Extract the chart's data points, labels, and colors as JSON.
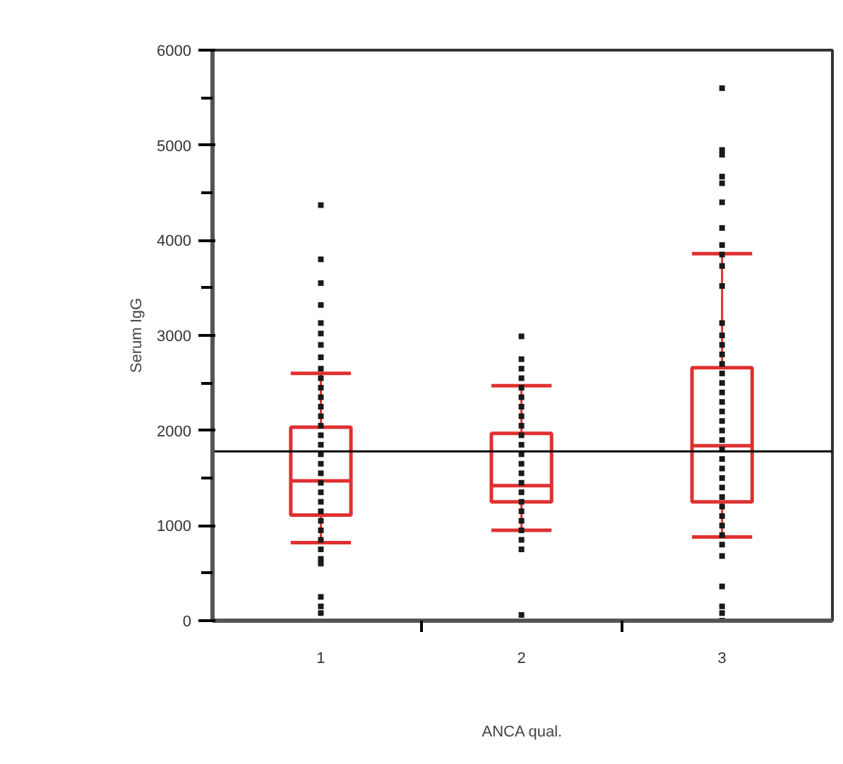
{
  "chart_data": {
    "type": "box",
    "xlabel": "ANCA qual.",
    "ylabel": "Serum IgG",
    "categories": [
      "1",
      "2",
      "3"
    ],
    "ylim": [
      0,
      6000
    ],
    "yticks": [
      0,
      {
        "value": 500,
        "label": null
      },
      1000,
      {
        "value": 1500,
        "label": null
      },
      2000,
      {
        "value": 2500,
        "label": null
      },
      3000,
      {
        "value": 3500,
        "label": null
      },
      4000,
      {
        "value": 4500,
        "label": null
      },
      5000,
      {
        "value": 5500,
        "label": null
      },
      6000
    ],
    "grid": false,
    "ref_lines": [
      {
        "axis": "y",
        "value": 1780,
        "color": "#000000"
      }
    ],
    "series": [
      {
        "type": "box",
        "color": "#e03030",
        "boxes": [
          {
            "low": 820,
            "q1": 1110,
            "median": 1470,
            "q3": 2035,
            "high": 2600
          },
          {
            "low": 950,
            "q1": 1250,
            "median": 1420,
            "q3": 1970,
            "high": 2470
          },
          {
            "low": 880,
            "q1": 1250,
            "median": 1840,
            "q3": 2660,
            "high": 3860
          }
        ]
      },
      {
        "type": "scatter",
        "color": "#1a1a1a",
        "marker": "square",
        "x": [
          "1",
          "1",
          "1",
          "1",
          "1",
          "1",
          "1",
          "1",
          "1",
          "1",
          "1",
          "1",
          "1",
          "1",
          "1",
          "1",
          "1",
          "1",
          "1",
          "1",
          "1",
          "1",
          "1",
          "1",
          "1",
          "1",
          "1",
          "1",
          "1",
          "1",
          "1",
          "1",
          "1",
          "2",
          "2",
          "2",
          "2",
          "2",
          "2",
          "2",
          "2",
          "2",
          "2",
          "2",
          "2",
          "2",
          "2",
          "2",
          "2",
          "2",
          "2",
          "2",
          "2",
          "2",
          "2",
          "2",
          "3",
          "3",
          "3",
          "3",
          "3",
          "3",
          "3",
          "3",
          "3",
          "3",
          "3",
          "3",
          "3",
          "3",
          "3",
          "3",
          "3",
          "3",
          "3",
          "3",
          "3",
          "3",
          "3",
          "3",
          "3",
          "3",
          "3",
          "3",
          "3",
          "3",
          "3",
          "3",
          "3",
          "3",
          "3",
          "3",
          "3",
          "3",
          "3",
          "3"
        ],
        "values": [
          4370,
          3800,
          3550,
          3320,
          3130,
          3020,
          2900,
          2770,
          2650,
          2550,
          2450,
          2350,
          2250,
          2150,
          2050,
          1950,
          1850,
          1750,
          1650,
          1550,
          1450,
          1350,
          1250,
          1150,
          1050,
          950,
          850,
          750,
          650,
          600,
          250,
          150,
          80,
          2990,
          2750,
          2650,
          2550,
          2450,
          2350,
          2250,
          2150,
          2050,
          1950,
          1850,
          1750,
          1650,
          1550,
          1450,
          1350,
          1250,
          1150,
          1050,
          950,
          850,
          750,
          60,
          5600,
          4950,
          4900,
          4670,
          4600,
          4400,
          4130,
          3950,
          3850,
          3730,
          3520,
          3130,
          3000,
          2900,
          2800,
          2700,
          2600,
          2500,
          2400,
          2300,
          2200,
          2100,
          2000,
          1900,
          1800,
          1700,
          1600,
          1500,
          1400,
          1300,
          1200,
          1100,
          1000,
          900,
          800,
          680,
          360,
          150,
          80,
          0
        ]
      }
    ]
  }
}
